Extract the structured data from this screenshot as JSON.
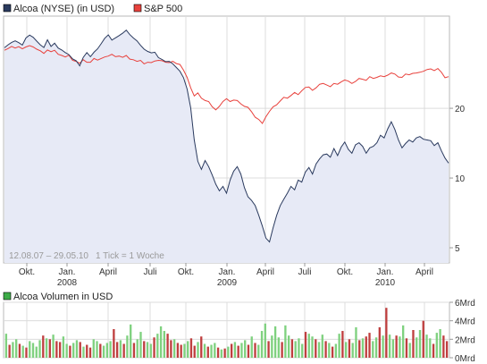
{
  "chart_data": [
    {
      "type": "line",
      "legend": [
        {
          "label": "Alcoa (NYSE) (in USD)",
          "color": "#2a3a5e"
        },
        {
          "label": "S&P 500",
          "color": "#e8413c"
        }
      ],
      "legend_placement": "top-left",
      "range_label": "12.08.07 – 29.05.10",
      "tick_label": "1 Tick = 1 Woche",
      "y_scale": "log",
      "ylim": [
        4.3,
        50
      ],
      "y_ticks": [
        5,
        10,
        20
      ],
      "x_ticks": [
        {
          "label": "Okt.",
          "year": ""
        },
        {
          "label": "Jan.",
          "year": "2008"
        },
        {
          "label": "April",
          "year": ""
        },
        {
          "label": "Juli",
          "year": ""
        },
        {
          "label": "Okt.",
          "year": ""
        },
        {
          "label": "Jan.",
          "year": "2009"
        },
        {
          "label": "April",
          "year": ""
        },
        {
          "label": "Juli",
          "year": ""
        },
        {
          "label": "Okt.",
          "year": ""
        },
        {
          "label": "Jan.",
          "year": "2010"
        },
        {
          "label": "April",
          "year": ""
        }
      ],
      "grid": true,
      "series": [
        {
          "name": "Alcoa (NYSE) (in USD)",
          "color": "#2a3a5e",
          "fill": "#e7eaf6",
          "values": [
            36.5,
            37.6,
            38.5,
            39.1,
            38.4,
            37.5,
            40.2,
            41.4,
            40.5,
            39.0,
            37.6,
            36.6,
            39.5,
            37.0,
            38.2,
            36.4,
            35.7,
            34.8,
            34.1,
            32.7,
            32.1,
            30.5,
            33.2,
            34.8,
            33.4,
            34.9,
            36.1,
            38.0,
            40.1,
            41.5,
            39.4,
            40.3,
            41.2,
            42.2,
            43.5,
            41.6,
            40.2,
            39.1,
            37.4,
            36.0,
            35.2,
            34.7,
            34.9,
            33.1,
            32.5,
            31.8,
            31.9,
            31.1,
            30.0,
            28.9,
            27.1,
            24.2,
            20.1,
            14.6,
            11.8,
            10.9,
            11.9,
            11.2,
            10.3,
            9.4,
            8.8,
            9.2,
            8.6,
            9.8,
            10.7,
            11.2,
            10.4,
            9.1,
            8.3,
            8.0,
            7.6,
            6.9,
            6.2,
            5.5,
            5.3,
            6.1,
            6.9,
            7.6,
            8.1,
            8.6,
            9.2,
            8.9,
            9.8,
            9.6,
            10.6,
            11.1,
            10.4,
            11.5,
            12.1,
            12.6,
            12.7,
            12.3,
            13.4,
            12.5,
            13.6,
            14.3,
            13.3,
            12.8,
            13.9,
            14.2,
            13.7,
            12.8,
            13.5,
            13.7,
            14.2,
            15.3,
            14.9,
            16.3,
            17.5,
            16.2,
            14.6,
            13.5,
            14.1,
            14.6,
            14.3,
            14.9,
            15.1,
            14.7,
            14.6,
            14.5,
            13.8,
            14.2,
            13.1,
            12.2,
            11.6
          ]
        },
        {
          "name": "S&P 500",
          "color": "#e8413c",
          "values": [
            35.6,
            36.2,
            37.0,
            36.4,
            36.9,
            36.1,
            36.8,
            37.3,
            36.8,
            36.0,
            35.4,
            34.5,
            35.7,
            35.1,
            35.6,
            34.2,
            33.8,
            33.3,
            33.9,
            32.2,
            31.9,
            31.3,
            32.4,
            31.6,
            31.6,
            32.8,
            32.3,
            32.8,
            33.3,
            33.6,
            34.2,
            33.4,
            33.6,
            33.2,
            33.8,
            32.6,
            32.4,
            31.9,
            32.2,
            31.1,
            31.6,
            31.5,
            32.0,
            32.2,
            32.1,
            31.6,
            31.5,
            31.9,
            31.2,
            30.9,
            29.2,
            27.2,
            24.5,
            22.6,
            23.3,
            22.1,
            21.6,
            21.4,
            20.3,
            19.7,
            20.4,
            21.4,
            22.0,
            21.4,
            21.7,
            21.6,
            20.9,
            20.4,
            20.2,
            19.3,
            18.3,
            17.9,
            17.2,
            18.4,
            19.4,
            20.3,
            20.7,
            21.5,
            22.3,
            22.1,
            22.7,
            23.4,
            22.9,
            23.8,
            24.6,
            24.7,
            23.9,
            24.5,
            25.4,
            25.6,
            25.2,
            24.8,
            25.6,
            25.4,
            26.0,
            26.5,
            26.2,
            25.6,
            26.1,
            26.9,
            26.7,
            26.4,
            27.4,
            26.9,
            27.2,
            27.6,
            27.4,
            27.8,
            28.4,
            28.1,
            27.3,
            27.2,
            28.1,
            27.9,
            28.3,
            28.4,
            28.6,
            28.9,
            29.4,
            29.6,
            29.1,
            29.7,
            28.6,
            27.1,
            27.4
          ]
        }
      ]
    },
    {
      "type": "bar",
      "title": "Alcoa Volumen in USD",
      "legend_color": "#3cab47",
      "ylim": [
        0,
        6
      ],
      "y_ticks": [
        "0Mrd",
        "2Mrd",
        "4Mrd",
        "6Mrd"
      ],
      "up_color": "#7fd17f",
      "down_color": "#bf3f3f",
      "values": [
        2.6,
        1.4,
        1.7,
        2.0,
        1.5,
        1.3,
        1.1,
        1.8,
        1.6,
        1.2,
        1.9,
        2.4,
        2.1,
        2.0,
        2.5,
        1.8,
        1.7,
        2.3,
        1.5,
        1.3,
        1.6,
        1.9,
        1.7,
        1.2,
        1.4,
        1.1,
        2.0,
        1.8,
        1.5,
        1.3,
        1.6,
        1.8,
        3.1,
        1.7,
        1.9,
        1.5,
        2.4,
        3.6,
        1.6,
        2.0,
        2.8,
        1.8,
        1.7,
        1.5,
        2.2,
        2.6,
        3.4,
        2.9,
        2.6,
        1.9,
        2.0,
        1.6,
        1.4,
        1.5,
        1.8,
        2.1,
        1.3,
        1.7,
        2.3,
        1.5,
        1.2,
        1.4,
        1.6,
        1.1,
        0.9,
        1.0,
        1.2,
        1.5,
        1.7,
        1.3,
        1.6,
        1.9,
        1.4,
        2.3,
        1.6,
        1.4,
        2.9,
        3.7,
        1.8,
        2.4,
        3.4,
        2.2,
        1.7,
        3.5,
        2.4,
        2.0,
        1.8,
        2.1,
        1.5,
        2.8,
        2.6,
        2.3,
        2.0,
        1.7,
        2.5,
        1.8,
        1.6,
        1.2,
        1.5,
        2.6,
        2.9,
        1.7,
        2.0,
        1.6,
        3.3,
        1.9,
        2.1,
        2.3,
        2.7,
        1.8,
        2.2,
        3.3,
        2.4,
        5.4,
        2.5,
        2.0,
        2.4,
        2.3,
        3.5,
        2.1,
        1.6,
        3.0,
        2.2,
        3.0,
        4.0,
        2.5,
        2.1,
        1.5,
        2.7,
        3.1,
        2.4,
        1.8
      ],
      "up": [
        1,
        0,
        1,
        1,
        0,
        1,
        0,
        1,
        1,
        1,
        1,
        0,
        1,
        0,
        1,
        0,
        0,
        1,
        1,
        0,
        1,
        1,
        0,
        1,
        0,
        0,
        1,
        1,
        0,
        1,
        1,
        1,
        0,
        0,
        1,
        0,
        1,
        1,
        0,
        1,
        1,
        0,
        1,
        1,
        0,
        1,
        1,
        1,
        0,
        0,
        1,
        0,
        0,
        1,
        1,
        0,
        0,
        1,
        0,
        1,
        0,
        1,
        1,
        0,
        1,
        0,
        1,
        0,
        1,
        0,
        1,
        1,
        0,
        1,
        0,
        1,
        1,
        1,
        0,
        1,
        1,
        1,
        0,
        1,
        1,
        0,
        1,
        1,
        1,
        0,
        1,
        1,
        0,
        1,
        1,
        0,
        1,
        0,
        1,
        1,
        0,
        1,
        0,
        1,
        1,
        0,
        1,
        0,
        0,
        1,
        1,
        0,
        1,
        0,
        1,
        1,
        0,
        1,
        1,
        0,
        1,
        0,
        1,
        1,
        0,
        1,
        1,
        0,
        1,
        1,
        0,
        0
      ]
    }
  ]
}
